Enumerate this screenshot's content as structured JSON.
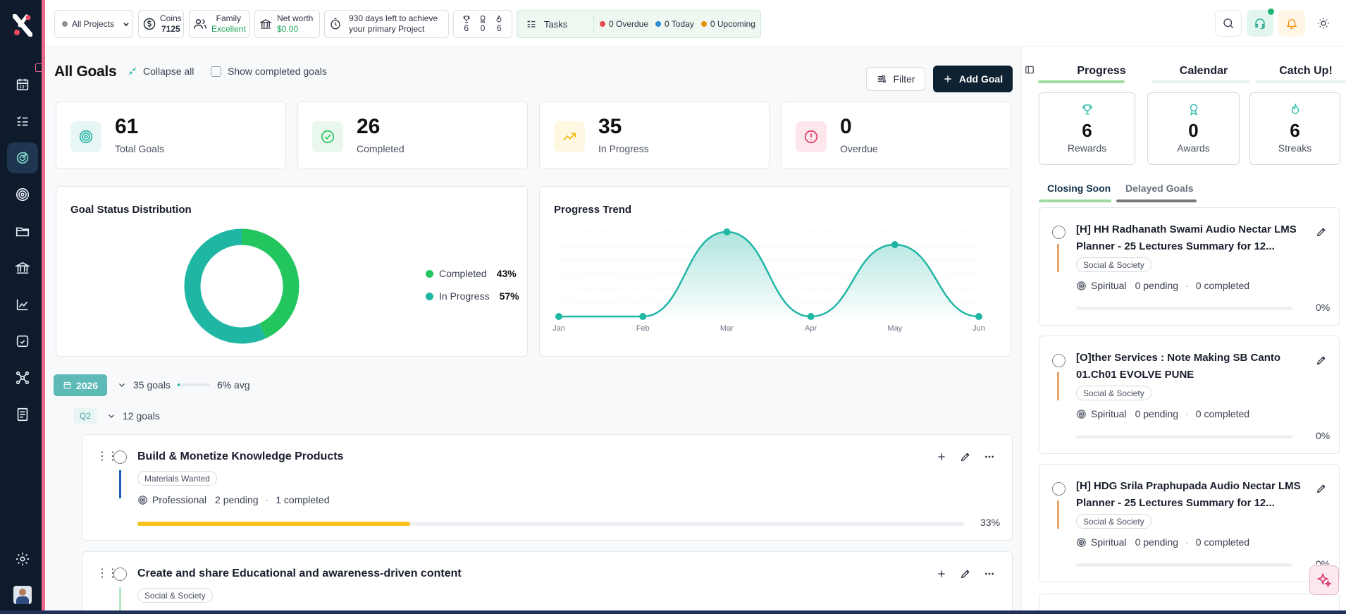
{
  "topbar": {
    "project": "All Projects",
    "coins_label": "Coins",
    "coins_value": "7125",
    "family_label": "Family",
    "family_value": "Excellent",
    "networth_label": "Net worth",
    "networth_value": "$0.00",
    "days_line1": "930 days left to achieve",
    "days_line2": "your primary Project",
    "counts": [
      "6",
      "0",
      "6"
    ],
    "tasks_label": "Tasks",
    "overdue": "0 Overdue",
    "today": "0 Today",
    "upcoming": "0 Upcoming",
    "colors": {
      "overdue": "#e5484d",
      "today": "#2e8bd8",
      "upcoming": "#f08c00"
    }
  },
  "main": {
    "title": "All Goals",
    "collapse_all": "Collapse all",
    "show_completed": "Show completed goals",
    "filter": "Filter",
    "add_goal": "Add Goal",
    "stats": [
      {
        "value": "61",
        "label": "Total Goals",
        "icon": "target-icon"
      },
      {
        "value": "26",
        "label": "Completed",
        "icon": "check-circle-icon"
      },
      {
        "value": "35",
        "label": "In Progress",
        "icon": "trending-up-icon"
      },
      {
        "value": "0",
        "label": "Overdue",
        "icon": "alert-circle-icon"
      }
    ],
    "distribution": {
      "title": "Goal Status Distribution",
      "completed_label": "Completed",
      "completed_pct": "43%",
      "inprogress_label": "In Progress",
      "inprogress_pct": "57%"
    },
    "trend": {
      "title": "Progress Trend"
    },
    "year": {
      "label": "2026",
      "goals": "35 goals",
      "avg": "6% avg",
      "avg_value": 6
    },
    "quarter": {
      "label": "Q2",
      "goals": "12 goals"
    },
    "goals": [
      {
        "title": "Build & Monetize Knowledge Products",
        "tag": "Materials Wanted",
        "category": "Professional",
        "pending": "2 pending",
        "completed": "1 completed",
        "progress": 33,
        "progress_text": "33%",
        "bar_color": "#1f5fbf"
      },
      {
        "title": "Create and share Educational and awareness-driven content",
        "tag": "Social & Society",
        "bar_color": "#b8e7c8"
      }
    ]
  },
  "chart_data": [
    {
      "type": "pie",
      "title": "Goal Status Distribution",
      "categories": [
        "Completed",
        "In Progress"
      ],
      "values": [
        43,
        57
      ],
      "colors": [
        "#22c55e",
        "#1fb6a4"
      ]
    },
    {
      "type": "line",
      "title": "Progress Trend",
      "x": [
        "Jan",
        "Feb",
        "Mar",
        "Apr",
        "May",
        "Jun"
      ],
      "series": [
        {
          "values": [
            0,
            0,
            100,
            0,
            85,
            0
          ]
        }
      ],
      "ylim": [
        0,
        100
      ],
      "color": "#1fb6a4"
    }
  ],
  "right": {
    "tabs": [
      "Progress",
      "Calendar",
      "Catch Up!"
    ],
    "cards": [
      {
        "value": "6",
        "label": "Rewards",
        "icon": "trophy-icon"
      },
      {
        "value": "0",
        "label": "Awards",
        "icon": "award-icon"
      },
      {
        "value": "6",
        "label": "Streaks",
        "icon": "flame-icon"
      }
    ],
    "subtabs": [
      "Closing Soon",
      "Delayed Goals"
    ],
    "goals": [
      {
        "title": "[H] HH Radhanath Swami Audio Nectar LMS Planner - 25 Lectures Summary for 12...",
        "tag": "Social & Society",
        "category": "Spiritual",
        "pending": "0 pending",
        "completed": "0 completed",
        "pct": "0%"
      },
      {
        "title": "[O]ther Services : Note Making SB Canto 01.Ch01 EVOLVE PUNE",
        "tag": "Social & Society",
        "category": "Spiritual",
        "pending": "0 pending",
        "completed": "0 completed",
        "pct": "0%"
      },
      {
        "title": "[H] HDG Srila Praphupada Audio Nectar LMS Planner - 25 Lectures Summary for 12...",
        "tag": "Social & Society",
        "category": "Spiritual",
        "pending": "0 pending",
        "completed": "0 completed",
        "pct": "0%"
      }
    ]
  }
}
